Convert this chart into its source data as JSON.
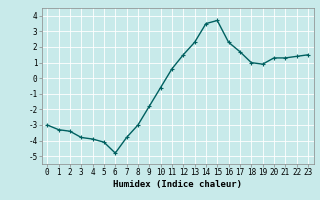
{
  "x": [
    0,
    1,
    2,
    3,
    4,
    5,
    6,
    7,
    8,
    9,
    10,
    11,
    12,
    13,
    14,
    15,
    16,
    17,
    18,
    19,
    20,
    21,
    22,
    23
  ],
  "y": [
    -3.0,
    -3.3,
    -3.4,
    -3.8,
    -3.9,
    -4.1,
    -4.8,
    -3.8,
    -3.0,
    -1.8,
    -0.6,
    0.6,
    1.5,
    2.3,
    3.5,
    3.7,
    2.3,
    1.7,
    1.0,
    0.9,
    1.3,
    1.3,
    1.4,
    1.5
  ],
  "line_color": "#006060",
  "marker": "+",
  "markersize": 3,
  "linewidth": 1.0,
  "xlabel": "Humidex (Indice chaleur)",
  "ylim": [
    -5.5,
    4.5
  ],
  "xlim": [
    -0.5,
    23.5
  ],
  "yticks": [
    -5,
    -4,
    -3,
    -2,
    -1,
    0,
    1,
    2,
    3,
    4
  ],
  "xticks": [
    0,
    1,
    2,
    3,
    4,
    5,
    6,
    7,
    8,
    9,
    10,
    11,
    12,
    13,
    14,
    15,
    16,
    17,
    18,
    19,
    20,
    21,
    22,
    23
  ],
  "bg_color": "#c8eaea",
  "grid_color": "#b0d8d8",
  "tick_labelsize": 5.5,
  "xlabel_fontsize": 6.5,
  "xlabel_fontweight": "bold",
  "spine_color": "#888888"
}
